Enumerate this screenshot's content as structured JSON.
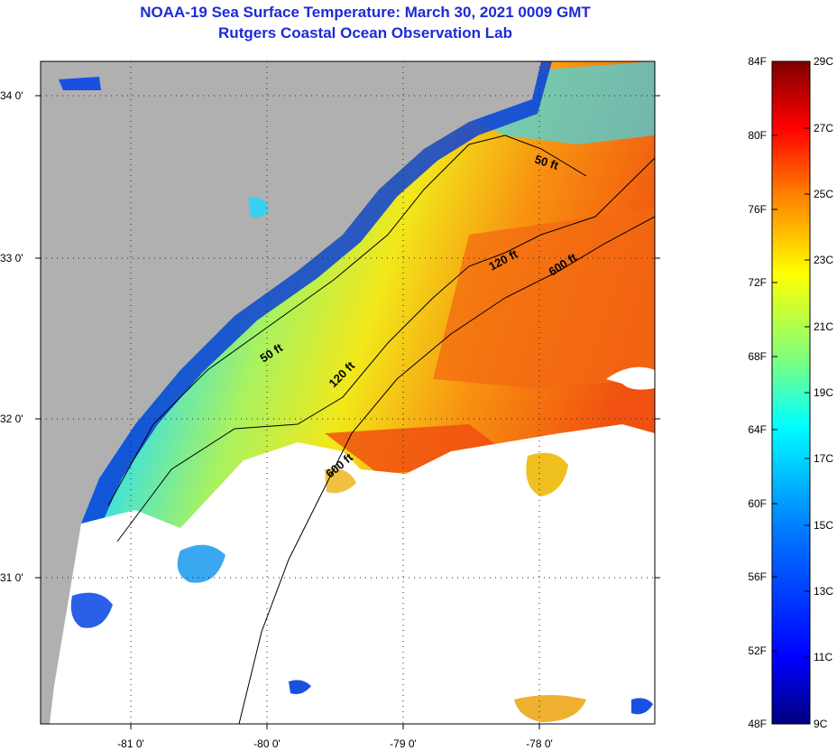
{
  "header": {
    "title": "NOAA-19 Sea Surface Temperature:  March 30, 2021 0009 GMT",
    "subtitle": "Rutgers Coastal Ocean Observation Lab"
  },
  "map": {
    "latitude_labels": [
      "34 0'",
      "33 0'",
      "32 0'",
      "31 0'"
    ],
    "longitude_labels": [
      "-81 0'",
      "-80 0'",
      "-79 0'",
      "-78 0'"
    ],
    "contour_labels": [
      "50 ft",
      "120 ft",
      "600 ft",
      "50 ft",
      "120 ft",
      "600 ft"
    ],
    "colors": {
      "land": "#b0b0b0",
      "cloud": "#ffffff",
      "contour": "#000000"
    }
  },
  "colorbar": {
    "fahrenheit_labels": [
      "84F",
      "80F",
      "76F",
      "72F",
      "68F",
      "64F",
      "60F",
      "56F",
      "52F",
      "48F"
    ],
    "celsius_labels": [
      "29C",
      "27C",
      "25C",
      "23C",
      "21C",
      "19C",
      "17C",
      "15C",
      "13C",
      "11C",
      "9C"
    ],
    "gradient_colors": [
      "#00007f",
      "#0000ff",
      "#007fff",
      "#00ffff",
      "#7fff7f",
      "#ffff00",
      "#ff7f00",
      "#ff0000",
      "#7f0000"
    ]
  }
}
